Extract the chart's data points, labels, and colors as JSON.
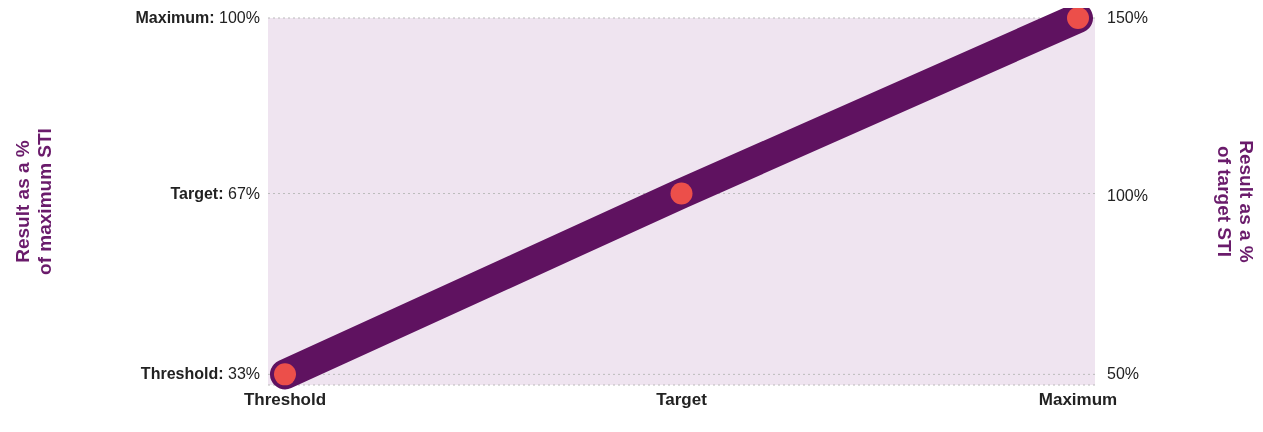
{
  "chart_data": {
    "type": "line",
    "categories": [
      "Threshold",
      "Target",
      "Maximum"
    ],
    "series": [
      {
        "color": "#5f1260",
        "values": [
          33,
          67,
          100
        ]
      }
    ],
    "ylim": [
      31,
      100
    ],
    "yticks": [
      {
        "value": 33,
        "label": "Threshold: 33%"
      },
      {
        "value": 67,
        "label": "Target: 67%"
      },
      {
        "value": 100,
        "label": "Maximum: 100%"
      }
    ],
    "y2lim": [
      47,
      150
    ],
    "y2ticks": [
      {
        "value": 50,
        "label": "50%"
      },
      {
        "value": 100,
        "label": "100%"
      },
      {
        "value": 150,
        "label": "150%"
      }
    ],
    "ylabel": "Result as a %\nof maximum STI",
    "y2label": "Result as a %\nof target STI",
    "grid": "y",
    "legend": false,
    "marker": "circle",
    "line_style": "solid"
  }
}
